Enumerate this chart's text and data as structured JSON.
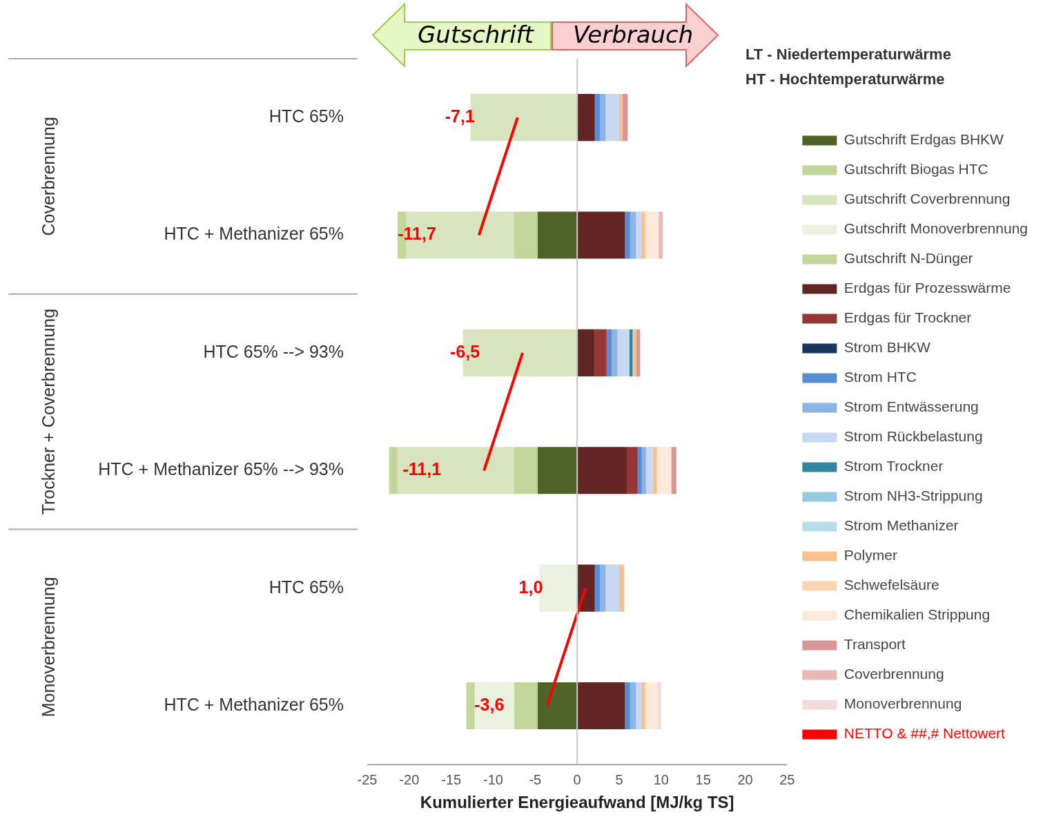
{
  "chart_data": {
    "type": "bar",
    "orientation": "horizontal",
    "stacked": true,
    "categories": [
      "HTC 65%",
      "HTC + Methanizer 65%",
      "HTC 65% --> 93%",
      "HTC + Methanizer 65% --> 93%",
      "HTC 65%",
      "HTC + Methanizer 65%"
    ],
    "xlabel": "Kumulierter Energieaufwand [MJ/kg TS]",
    "xlim": [
      -25,
      25
    ],
    "xticks": [
      -25,
      -20,
      -15,
      -10,
      -5,
      0,
      5,
      10,
      15,
      20,
      25
    ],
    "grid": false,
    "legend": "right",
    "ref_lines": [
      {
        "axis": "x",
        "value": 0,
        "color": "#c8c8c8"
      }
    ],
    "annotations": [
      "Coverbrennung",
      "Trockner + Coverbrennung",
      "Monoverbrennung",
      "Gutschrift",
      "Verbrauch",
      "LT - Niedertemperaturwärme",
      "HT - Hochtemperaturwärme"
    ],
    "series": [
      {
        "name": "Gutschrift Erdgas BHKW",
        "color": "#4f6228",
        "values": [
          null,
          -4.7,
          null,
          -4.7,
          null,
          -4.7
        ]
      },
      {
        "name": "Gutschrift Biogas HTC",
        "color": "#c3d69b",
        "values": [
          null,
          -2.8,
          null,
          -2.8,
          null,
          -2.8
        ]
      },
      {
        "name": "Gutschrift Coverbrennung",
        "color": "#d7e4bd",
        "values": [
          -12.7,
          -12.9,
          -13.6,
          -13.9,
          null,
          null
        ]
      },
      {
        "name": "Gutschrift Monoverbrennung",
        "color": "#ebf1de",
        "values": [
          null,
          null,
          null,
          null,
          -4.5,
          -4.7
        ]
      },
      {
        "name": "Gutschrift N-Dünger",
        "color": "#c4d79b",
        "values": [
          null,
          -1.0,
          null,
          -1.0,
          null,
          -1.0
        ]
      },
      {
        "name": "Erdgas für Prozesswärme",
        "color": "#632523",
        "values": [
          2.1,
          5.7,
          2.1,
          5.9,
          2.1,
          5.7
        ]
      },
      {
        "name": "Erdgas für Trockner",
        "color": "#953735",
        "values": [
          null,
          null,
          1.4,
          1.3,
          null,
          null
        ]
      },
      {
        "name": "Strom BHKW",
        "color": "#17375e",
        "values": [
          null,
          null,
          null,
          null,
          null,
          null
        ]
      },
      {
        "name": "Strom HTC",
        "color": "#558ed5",
        "values": [
          0.6,
          0.6,
          0.6,
          0.5,
          0.6,
          0.6
        ]
      },
      {
        "name": "Strom Entwässerung",
        "color": "#8eb4e3",
        "values": [
          0.7,
          0.7,
          0.7,
          0.5,
          0.7,
          0.7
        ]
      },
      {
        "name": "Strom Rückbelastung",
        "color": "#c6d9f1",
        "values": [
          1.6,
          0.6,
          1.4,
          0.8,
          1.6,
          0.6
        ]
      },
      {
        "name": "Strom Trockner",
        "color": "#31859c",
        "values": [
          null,
          null,
          0.4,
          null,
          null,
          null
        ]
      },
      {
        "name": "Strom NH3-Strippung",
        "color": "#93cddd",
        "values": [
          null,
          null,
          null,
          null,
          null,
          null
        ]
      },
      {
        "name": "Strom Methanizer",
        "color": "#b7dee8",
        "values": [
          null,
          null,
          null,
          null,
          null,
          null
        ]
      },
      {
        "name": "Polymer",
        "color": "#fac090",
        "values": [
          0.4,
          0.5,
          0.4,
          0.5,
          0.6,
          0.5
        ]
      },
      {
        "name": "Schwefelsäure",
        "color": "#fcd5b5",
        "values": [
          null,
          null,
          null,
          null,
          null,
          null
        ]
      },
      {
        "name": "Chemikalien Strippung",
        "color": "#fde9d9",
        "values": [
          null,
          1.6,
          null,
          1.7,
          null,
          1.5
        ]
      },
      {
        "name": "Transport",
        "color": "#d99694",
        "values": [
          0.6,
          null,
          0.5,
          0.6,
          null,
          null
        ]
      },
      {
        "name": "Coverbrennung",
        "color": "#e6b9b8",
        "values": [
          null,
          0.5,
          null,
          null,
          null,
          null
        ]
      },
      {
        "name": "Monoverbrennung",
        "color": "#f2dcdb",
        "values": [
          null,
          null,
          null,
          null,
          null,
          0.4
        ]
      },
      {
        "name": "NETTO & ##,# Nettowert",
        "type": "line",
        "color": "#ff0000",
        "values": [
          -7.1,
          -11.7,
          null,
          null,
          null,
          null
        ],
        "value_labels": [
          "-7,1",
          "-11,7",
          null,
          null,
          null,
          null
        ]
      },
      {
        "type": "line",
        "color": "#ff0000",
        "values": [
          null,
          null,
          -6.5,
          -11.1,
          null,
          null
        ],
        "value_labels": [
          null,
          null,
          "-6,5",
          "-11,1",
          null,
          null
        ]
      },
      {
        "type": "line",
        "color": "#ff0000",
        "values": [
          null,
          null,
          null,
          null,
          1.0,
          -3.6
        ],
        "value_labels": [
          null,
          null,
          null,
          null,
          "1,0",
          "-3,6"
        ]
      }
    ]
  }
}
